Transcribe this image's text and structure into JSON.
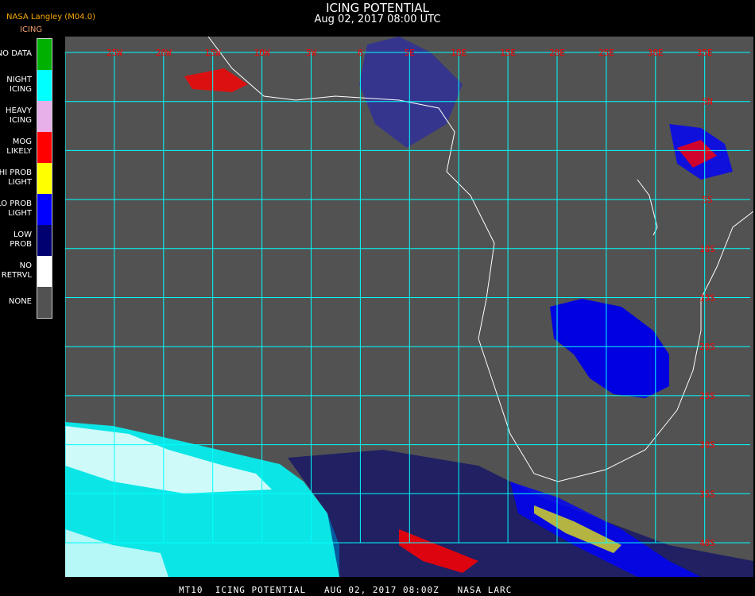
{
  "header": {
    "title": "ICING POTENTIAL",
    "subtitle": "Aug 02, 2017 08:00 UTC",
    "org": "NASA Langley (M04.0)",
    "product": "ICING"
  },
  "legend": [
    {
      "label": "NO DATA",
      "color": "#00b000"
    },
    {
      "label": "NIGHT\nICING",
      "color": "#00ffff"
    },
    {
      "label": "HEAVY\nICING",
      "color": "#e8b0e8"
    },
    {
      "label": "MOG\nLIKELY",
      "color": "#ff0000"
    },
    {
      "label": "HI PROB\nLIGHT",
      "color": "#ffff00"
    },
    {
      "label": "LO PROB\nLIGHT",
      "color": "#0000ff"
    },
    {
      "label": "LOW\nPROB",
      "color": "#000070"
    },
    {
      "label": "NO\nRETRVL",
      "color": "#ffffff"
    },
    {
      "label": "NONE",
      "color": "#525252"
    }
  ],
  "map": {
    "lon_labels": [
      "25W",
      "20W",
      "15W",
      "10W",
      "5W",
      "0",
      "5E",
      "10E",
      "15E",
      "20E",
      "25E",
      "30E",
      "35E"
    ],
    "lat_labels": [
      "5N",
      "0",
      "5S",
      "10S",
      "15S",
      "20S",
      "25S",
      "30S",
      "35S",
      "40S"
    ],
    "grid_color": "#00ffff",
    "label_color": "#ff0000",
    "background": "#525252"
  },
  "footer": "MT10  ICING POTENTIAL   AUG 02, 2017 08:00Z   NASA LARC"
}
